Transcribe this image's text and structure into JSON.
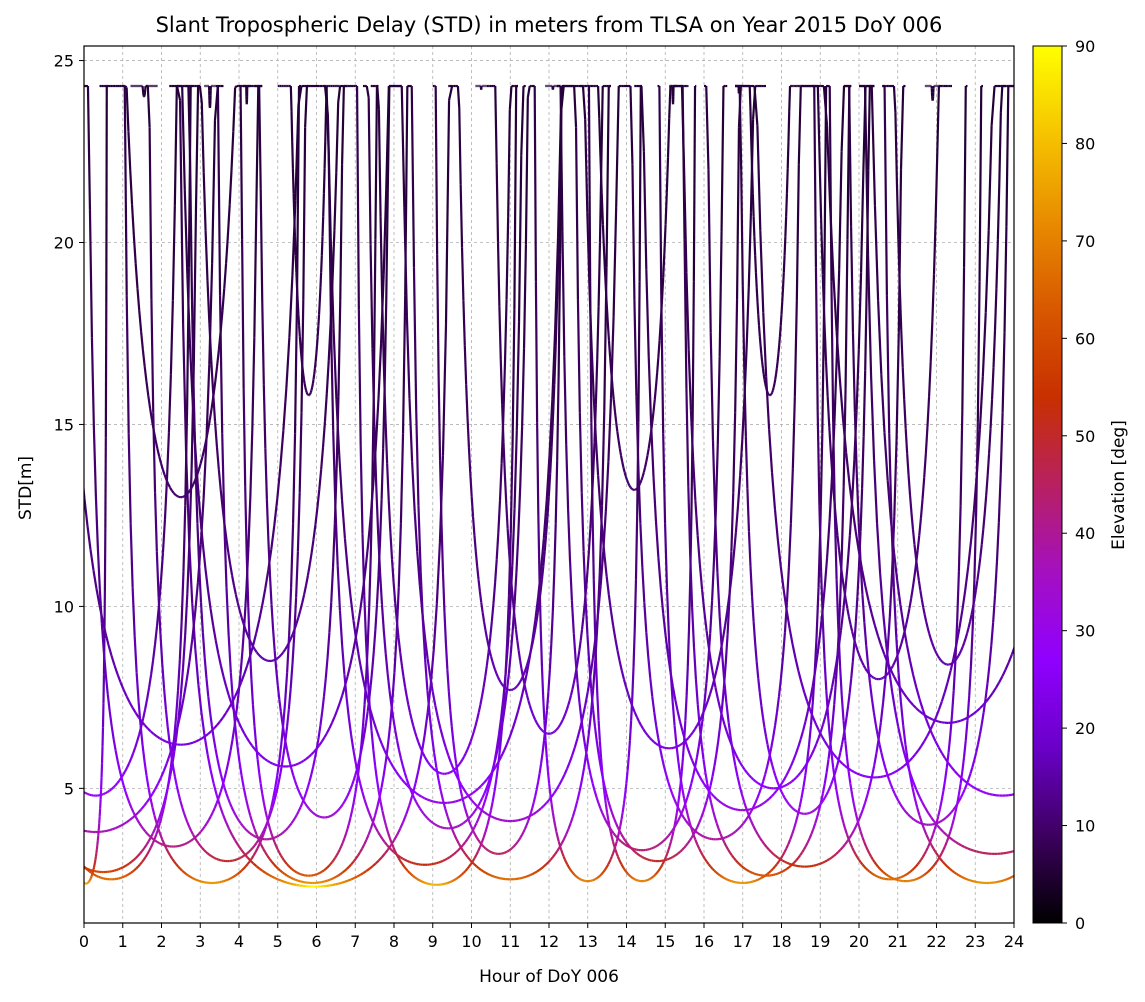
{
  "chart_data": {
    "type": "scatter",
    "title": "Slant Tropospheric Delay (STD) in meters from TLSA on Year 2015 DoY 006",
    "xlabel": "Hour of DoY 006",
    "ylabel": "STD[m]",
    "xlim": [
      0,
      24
    ],
    "ylim": [
      1.3,
      25.4
    ],
    "xticks": [
      0,
      1,
      2,
      3,
      4,
      5,
      6,
      7,
      8,
      9,
      10,
      11,
      12,
      13,
      14,
      15,
      16,
      17,
      18,
      19,
      20,
      21,
      22,
      23,
      24
    ],
    "yticks": [
      5,
      10,
      15,
      20,
      25
    ],
    "grid": true,
    "colorbar": {
      "label": "Elevation [deg]",
      "range": [
        0,
        90
      ],
      "ticks": [
        0,
        10,
        20,
        30,
        40,
        50,
        60,
        70,
        80,
        90
      ],
      "colormap": "gnuplot",
      "colors": [
        "#000000",
        "#3d0060",
        "#6a00c8",
        "#9000ff",
        "#a410c0",
        "#b82060",
        "#c83000",
        "#d85800",
        "#e88c00",
        "#f6c400",
        "#ffff00"
      ]
    },
    "series": [
      {
        "values": [
          {
            "t0": -0.5,
            "t1": 0.6,
            "min": 2.38
          },
          {
            "t0": 2.4,
            "t1": 9.5,
            "min": 2.3
          },
          {
            "t0": 14.8,
            "t1": 19.2,
            "min": 2.4
          },
          {
            "t0": 19.2,
            "t1": 23.2,
            "min": 2.45
          }
        ]
      },
      {
        "values": [
          {
            "t0": -1.4,
            "t1": 2.8,
            "min": 2.5
          },
          {
            "t0": 3.4,
            "t1": 8.4,
            "min": 2.4
          },
          {
            "t0": 13.0,
            "t1": 15.8,
            "min": 2.45
          },
          {
            "t0": 18.8,
            "t1": 22.8,
            "min": 2.5
          }
        ]
      },
      {
        "values": [
          {
            "t0": 1.0,
            "t1": 5.6,
            "min": 2.4
          },
          {
            "t0": 7.0,
            "t1": 11.2,
            "min": 2.35
          },
          {
            "t0": 11.6,
            "t1": 14.4,
            "min": 2.45
          },
          {
            "t0": 20.6,
            "t1": 26.0,
            "min": 2.4
          }
        ]
      },
      {
        "values": [
          {
            "t0": -2.0,
            "t1": 3.0,
            "min": 2.7
          },
          {
            "t0": 4.0,
            "t1": 7.6,
            "min": 2.6
          },
          {
            "t0": 8.4,
            "t1": 13.6,
            "min": 2.5
          },
          {
            "t0": 15.4,
            "t1": 19.8,
            "min": 2.6
          }
        ]
      },
      {
        "values": [
          {
            "t0": 1.6,
            "t1": 5.8,
            "min": 3.0
          },
          {
            "t0": 6.2,
            "t1": 11.4,
            "min": 2.9
          },
          {
            "t0": 12.6,
            "t1": 17.0,
            "min": 3.0
          },
          {
            "t0": 16.0,
            "t1": 21.2,
            "min": 2.85
          }
        ]
      },
      {
        "values": [
          {
            "t0": 0.0,
            "t1": 4.6,
            "min": 3.4
          },
          {
            "t0": 9.0,
            "t1": 12.4,
            "min": 3.2
          },
          {
            "t0": 12.2,
            "t1": 16.6,
            "min": 3.3
          },
          {
            "t0": 20.0,
            "t1": 27.0,
            "min": 3.2
          }
        ]
      },
      {
        "values": [
          {
            "t0": -3.0,
            "t1": 3.6,
            "min": 3.8
          },
          {
            "t0": 2.6,
            "t1": 6.8,
            "min": 3.6
          },
          {
            "t0": 7.2,
            "t1": 11.6,
            "min": 3.9
          },
          {
            "t0": 14.0,
            "t1": 18.6,
            "min": 3.6
          }
        ]
      },
      {
        "values": [
          {
            "t0": 4.4,
            "t1": 8.0,
            "min": 4.2
          },
          {
            "t0": 8.0,
            "t1": 14.0,
            "min": 4.1
          },
          {
            "t0": 16.8,
            "t1": 20.4,
            "min": 4.3
          },
          {
            "t0": 19.6,
            "t1": 24.0,
            "min": 4.0
          }
        ]
      },
      {
        "values": [
          {
            "t0": -2.0,
            "t1": 2.6,
            "min": 4.8
          },
          {
            "t0": 6.0,
            "t1": 12.6,
            "min": 4.6
          },
          {
            "t0": 14.2,
            "t1": 19.8,
            "min": 4.4
          },
          {
            "t0": 20.0,
            "t1": 27.4,
            "min": 4.8
          }
        ]
      },
      {
        "values": [
          {
            "t0": 2.2,
            "t1": 8.2,
            "min": 5.6
          },
          {
            "t0": 7.4,
            "t1": 11.2,
            "min": 5.4
          },
          {
            "t0": 15.2,
            "t1": 20.4,
            "min": 5.0
          },
          {
            "t0": 17.0,
            "t1": 23.8,
            "min": 5.3
          }
        ]
      },
      {
        "values": [
          {
            "t0": -1.0,
            "t1": 6.0,
            "min": 6.2
          },
          {
            "t0": 10.4,
            "t1": 13.6,
            "min": 6.5
          },
          {
            "t0": 12.6,
            "t1": 17.6,
            "min": 6.1
          },
          {
            "t0": 18.6,
            "t1": 26.0,
            "min": 6.8
          }
        ]
      },
      {
        "values": [
          {
            "t0": 0.4,
            "t1": 4.6,
            "min": 13.0
          },
          {
            "t0": 2.6,
            "t1": 7.0,
            "min": 8.5
          },
          {
            "t0": 5.0,
            "t1": 6.6,
            "min": 15.8
          },
          {
            "t0": 9.4,
            "t1": 12.6,
            "min": 7.7
          }
        ]
      },
      {
        "values": [
          {
            "t0": 12.8,
            "t1": 15.6,
            "min": 13.2
          },
          {
            "t0": 16.8,
            "t1": 18.6,
            "min": 15.8
          },
          {
            "t0": 18.6,
            "t1": 22.4,
            "min": 8.0
          },
          {
            "t0": 20.6,
            "t1": 24.0,
            "min": 8.4
          }
        ]
      },
      {
        "values": [
          {
            "t0": 1.2,
            "t1": 1.9,
            "min": 24.0
          },
          {
            "t0": 3.1,
            "t1": 3.4,
            "min": 23.7
          },
          {
            "t0": 4.1,
            "t1": 4.3,
            "min": 23.8
          },
          {
            "t0": 10.1,
            "t1": 10.4,
            "min": 24.2
          }
        ]
      },
      {
        "values": [
          {
            "t0": 11.9,
            "t1": 12.3,
            "min": 24.2
          },
          {
            "t0": 15.1,
            "t1": 15.3,
            "min": 23.8
          },
          {
            "t0": 16.8,
            "t1": 17.0,
            "min": 24.1
          },
          {
            "t0": 21.7,
            "t1": 22.1,
            "min": 23.9
          }
        ]
      }
    ]
  }
}
